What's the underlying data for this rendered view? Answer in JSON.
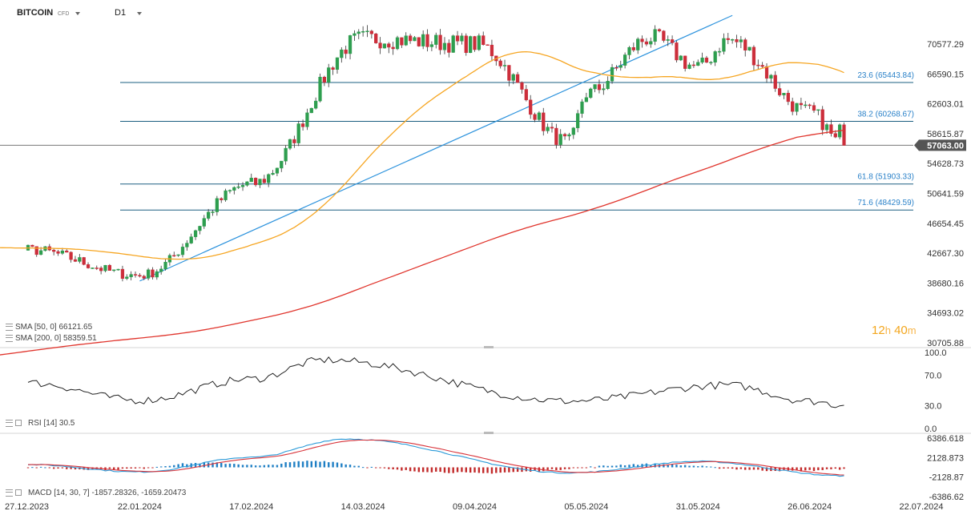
{
  "header": {
    "symbol": "BITCOIN",
    "symbol_type": "CFD",
    "timeframe": "D1"
  },
  "timer": {
    "hours": "12",
    "hours_unit": "h",
    "minutes": "40",
    "minutes_unit": "m"
  },
  "legends": {
    "sma50": "SMA  [50, 0]  66121.65",
    "sma200": "SMA  [200, 0]  58359.51",
    "rsi": "RSI  [14]  30.5",
    "macd": "MACD  [14, 30, 7]  -1857.28326,  -1659.20473"
  },
  "chart_data": [
    {
      "type": "candlestick",
      "symbol": "BITCOIN",
      "timeframe": "D1",
      "ylim": [
        30705.88,
        74564.26
      ],
      "y_ticks": [
        "70577.29",
        "66590.15",
        "62603.01",
        "58615.87",
        "54628.73",
        "50641.59",
        "46654.45",
        "42667.30",
        "38680.16",
        "34693.02",
        "30705.88"
      ],
      "x_ticks": [
        "27.12.2023",
        "22.01.2024",
        "17.02.2024",
        "14.03.2024",
        "09.04.2024",
        "05.05.2024",
        "31.05.2024",
        "26.06.2024",
        "22.07.2024"
      ],
      "last_price": "57063.00",
      "current_price_line": 57063,
      "fib_levels": [
        {
          "label": "23.6 (65443.84)",
          "value": 65443.84
        },
        {
          "label": "38.2 (60268.67)",
          "value": 60268.67
        },
        {
          "label": "61.8 (51903.33)",
          "value": 51903.33
        },
        {
          "label": "71.6 (48429.59)",
          "value": 48429.59
        }
      ],
      "trendline": [
        [
          "22.01.2024",
          38950
        ],
        [
          "2024-06-08",
          74400
        ]
      ],
      "key_closes": [
        [
          "27.12.2023",
          43100
        ],
        [
          "22.01.2024",
          39700
        ],
        [
          "17.02.2024",
          51900
        ],
        [
          "14.03.2024",
          71300
        ],
        [
          "09.04.2024",
          70600
        ],
        [
          "01.05.2024",
          57500
        ],
        [
          "05.05.2024",
          64000
        ],
        [
          "20.05.2024",
          71400
        ],
        [
          "31.05.2024",
          67500
        ],
        [
          "07.06.2024",
          71100
        ],
        [
          "26.06.2024",
          61500
        ],
        [
          "04.07.2024",
          57063
        ]
      ],
      "series": [
        {
          "name": "SMA [50, 0]",
          "last": 66121.65,
          "color": "#f6a623"
        },
        {
          "name": "SMA [200, 0]",
          "last": 58359.51,
          "color": "#e0342c"
        }
      ],
      "colors": {
        "up": "#2e9e4f",
        "down": "#cc2e3b",
        "price_label_bg": "#555555"
      }
    },
    {
      "type": "line",
      "name": "RSI [14]",
      "last": 30.5,
      "ylim": [
        0,
        100
      ],
      "y_ticks": [
        "100.0",
        "70.0",
        "30.0",
        "0.0"
      ],
      "key_values": [
        [
          "27.12.2023",
          60
        ],
        [
          "22.01.2024",
          37
        ],
        [
          "17.02.2024",
          65
        ],
        [
          "05.03.2024",
          90
        ],
        [
          "01.05.2024",
          36
        ],
        [
          "07.06.2024",
          57
        ],
        [
          "26.06.2024",
          36
        ],
        [
          "04.07.2024",
          30.5
        ]
      ]
    },
    {
      "type": "macd",
      "name": "MACD [14, 30, 7]",
      "macd_last": -1857.28326,
      "signal_last": -1659.20473,
      "ylim": [
        -6386.62,
        6386.618
      ],
      "y_ticks": [
        "6386.618",
        "2128.873",
        "-2128.87",
        "-6386.62"
      ],
      "key_values": [
        [
          "27.12.2023",
          600
        ],
        [
          "22.01.2024",
          -1000
        ],
        [
          "17.02.2024",
          2200
        ],
        [
          "10.03.2024",
          6200
        ],
        [
          "01.05.2024",
          -1200
        ],
        [
          "31.05.2024",
          1300
        ],
        [
          "04.07.2024",
          -1857
        ]
      ],
      "colors": {
        "macd": "#2a9ad8",
        "signal": "#d8333a",
        "hist_up": "#1f7fc4",
        "hist_down": "#c22a2a"
      }
    }
  ]
}
